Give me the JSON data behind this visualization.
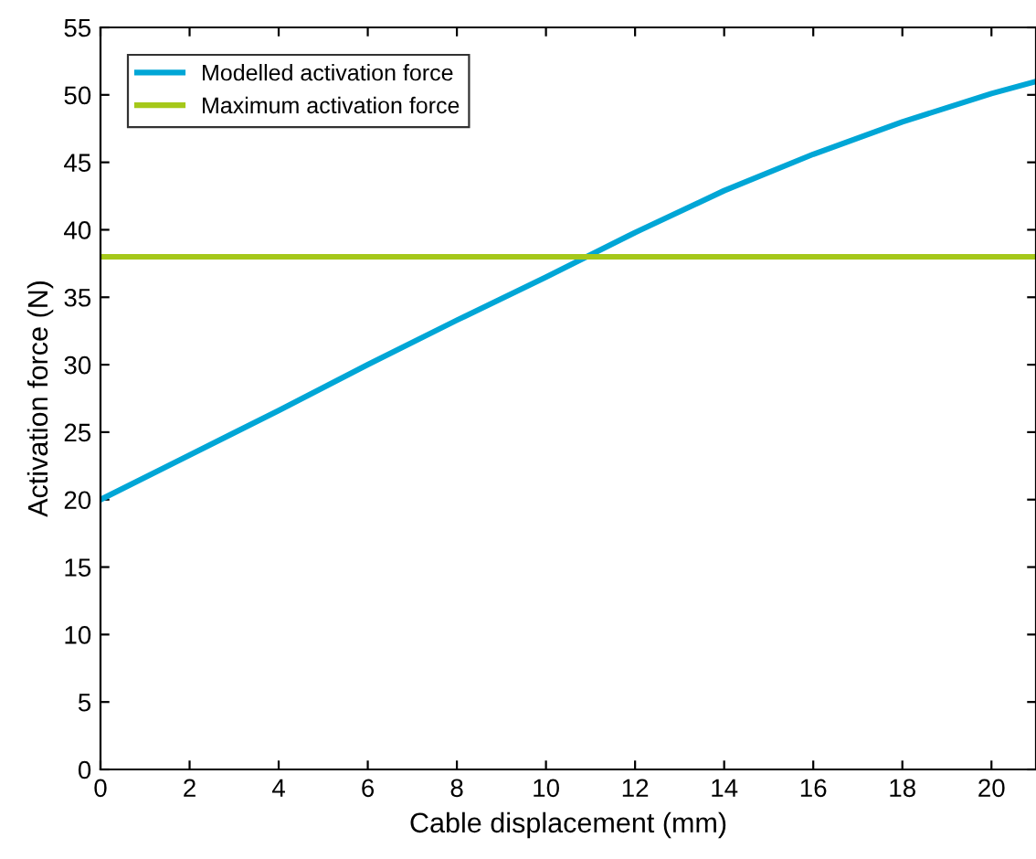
{
  "chart_data": {
    "type": "line",
    "xlabel": "Cable displacement (mm)",
    "ylabel": "Activation force (N)",
    "xlim": [
      0,
      21
    ],
    "xticks": [
      0,
      2,
      4,
      6,
      8,
      10,
      12,
      14,
      16,
      18,
      20
    ],
    "ylim": [
      0,
      55
    ],
    "yticks": [
      0,
      5,
      10,
      15,
      20,
      25,
      30,
      35,
      40,
      45,
      50,
      55
    ],
    "grid": false,
    "legend": "top left",
    "marker": "none",
    "line_style": "solid",
    "series": [
      {
        "name": "Modelled activation force",
        "color": "#00a6d6",
        "x": [
          0,
          2,
          4,
          6,
          8,
          10,
          12,
          14,
          16,
          18,
          20,
          21
        ],
        "values": [
          20,
          23.3,
          26.6,
          30.0,
          33.3,
          36.5,
          39.8,
          42.9,
          45.6,
          48.0,
          50.1,
          51.0
        ]
      },
      {
        "name": "Maximum activation force",
        "color": "#a5c81a",
        "x": [
          0,
          21
        ],
        "values": [
          38,
          38
        ]
      }
    ]
  }
}
